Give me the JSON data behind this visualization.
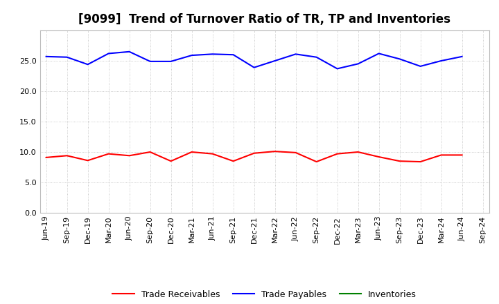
{
  "title": "[9099]  Trend of Turnover Ratio of TR, TP and Inventories",
  "x_labels": [
    "Jun-19",
    "Sep-19",
    "Dec-19",
    "Mar-20",
    "Jun-20",
    "Sep-20",
    "Dec-20",
    "Mar-21",
    "Jun-21",
    "Sep-21",
    "Dec-21",
    "Mar-22",
    "Jun-22",
    "Sep-22",
    "Dec-22",
    "Mar-23",
    "Jun-23",
    "Sep-23",
    "Dec-23",
    "Mar-24",
    "Jun-24",
    "Sep-24"
  ],
  "trade_receivables": [
    9.1,
    9.4,
    8.6,
    9.7,
    9.4,
    10.0,
    8.5,
    10.0,
    9.7,
    8.5,
    9.8,
    10.1,
    9.9,
    8.4,
    9.7,
    10.0,
    9.2,
    8.5,
    8.4,
    9.5,
    9.5,
    null
  ],
  "trade_payables": [
    25.7,
    25.6,
    24.4,
    26.2,
    26.5,
    24.9,
    24.9,
    25.9,
    26.1,
    26.0,
    23.9,
    25.0,
    26.1,
    25.6,
    23.7,
    24.5,
    26.2,
    25.3,
    24.1,
    25.0,
    25.7,
    null
  ],
  "inventories": [
    null,
    null,
    null,
    null,
    null,
    null,
    null,
    null,
    null,
    null,
    null,
    null,
    null,
    null,
    null,
    null,
    null,
    null,
    null,
    null,
    null,
    null
  ],
  "tr_color": "#ff0000",
  "tp_color": "#0000ff",
  "inv_color": "#008000",
  "ylim": [
    0,
    30
  ],
  "yticks": [
    0.0,
    5.0,
    10.0,
    15.0,
    20.0,
    25.0
  ],
  "background_color": "#ffffff",
  "grid_color": "#aaaaaa",
  "title_fontsize": 12,
  "legend_fontsize": 9,
  "axis_fontsize": 8
}
